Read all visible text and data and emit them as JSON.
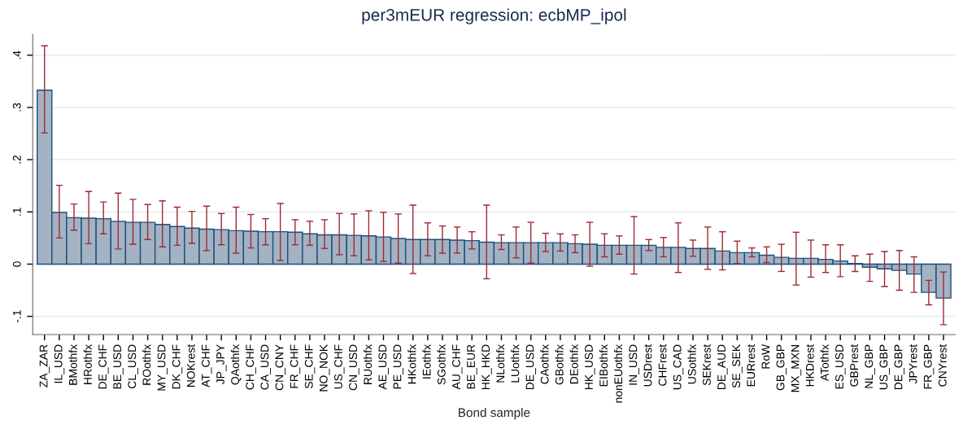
{
  "chart_data": {
    "type": "bar",
    "title": "per3mEUR regression: ecbMP_ipol",
    "xlabel": "Bond sample",
    "categories": [
      "ZA_ZAR",
      "IL_USD",
      "BMothfx",
      "HRothfx",
      "DE_CHF",
      "BE_USD",
      "CL_USD",
      "ROothfx",
      "MY_USD",
      "DK_CHF",
      "NOKrest",
      "AT_CHF",
      "JP_JPY",
      "QAothfx",
      "CH_CHF",
      "CA_USD",
      "CN_CNY",
      "FR_CHF",
      "SE_CHF",
      "NO_NOK",
      "US_CHF",
      "CN_USD",
      "RUothfx",
      "AE_USD",
      "PE_USD",
      "HKothfx",
      "IEothfx",
      "SGothfx",
      "AU_CHF",
      "BE_EUR",
      "HK_HKD",
      "NLothfx",
      "LUothfx",
      "DE_USD",
      "CAothfx",
      "GBothfx",
      "DEothfx",
      "HK_USD",
      "EIBothfx",
      "nonEUothfx",
      "IN_USD",
      "USDrest",
      "CHFrest",
      "US_CAD",
      "USothfx",
      "SEKrest",
      "DE_AUD",
      "SE_SEK",
      "EURrest",
      "RoW",
      "GB_GBP",
      "MX_MXN",
      "HKDrest",
      "ATothfx",
      "ES_USD",
      "GBPrest",
      "NL_GBP",
      "US_GBP",
      "DE_GBP",
      "JPYrest",
      "FR_GBP",
      "CNYrest"
    ],
    "values": [
      0.333,
      0.099,
      0.089,
      0.088,
      0.087,
      0.082,
      0.08,
      0.08,
      0.076,
      0.072,
      0.069,
      0.067,
      0.066,
      0.064,
      0.063,
      0.062,
      0.062,
      0.061,
      0.058,
      0.056,
      0.056,
      0.055,
      0.054,
      0.052,
      0.049,
      0.047,
      0.047,
      0.047,
      0.046,
      0.045,
      0.042,
      0.041,
      0.041,
      0.041,
      0.041,
      0.041,
      0.039,
      0.038,
      0.036,
      0.036,
      0.036,
      0.036,
      0.032,
      0.032,
      0.03,
      0.03,
      0.025,
      0.022,
      0.022,
      0.017,
      0.013,
      0.011,
      0.011,
      0.009,
      0.006,
      0.001,
      -0.006,
      -0.009,
      -0.012,
      -0.019,
      -0.054,
      -0.065
    ],
    "errors": [
      [
        0.251,
        0.418
      ],
      [
        0.05,
        0.151
      ],
      [
        0.065,
        0.115
      ],
      [
        0.039,
        0.139
      ],
      [
        0.058,
        0.119
      ],
      [
        0.029,
        0.136
      ],
      [
        0.038,
        0.124
      ],
      [
        0.047,
        0.114
      ],
      [
        0.033,
        0.121
      ],
      [
        0.036,
        0.109
      ],
      [
        0.04,
        0.101
      ],
      [
        0.026,
        0.111
      ],
      [
        0.037,
        0.097
      ],
      [
        0.021,
        0.109
      ],
      [
        0.031,
        0.095
      ],
      [
        0.037,
        0.087
      ],
      [
        0.007,
        0.116
      ],
      [
        0.037,
        0.085
      ],
      [
        0.036,
        0.082
      ],
      [
        0.03,
        0.085
      ],
      [
        0.018,
        0.097
      ],
      [
        0.016,
        0.096
      ],
      [
        0.008,
        0.102
      ],
      [
        0.005,
        0.099
      ],
      [
        0.002,
        0.096
      ],
      [
        -0.018,
        0.113
      ],
      [
        0.016,
        0.079
      ],
      [
        0.021,
        0.073
      ],
      [
        0.021,
        0.071
      ],
      [
        0.029,
        0.062
      ],
      [
        -0.028,
        0.113
      ],
      [
        0.028,
        0.056
      ],
      [
        0.012,
        0.071
      ],
      [
        0.002,
        0.08
      ],
      [
        0.024,
        0.059
      ],
      [
        0.025,
        0.058
      ],
      [
        0.022,
        0.056
      ],
      [
        -0.004,
        0.08
      ],
      [
        0.014,
        0.058
      ],
      [
        0.019,
        0.054
      ],
      [
        -0.019,
        0.091
      ],
      [
        0.026,
        0.047
      ],
      [
        0.014,
        0.051
      ],
      [
        -0.016,
        0.079
      ],
      [
        0.015,
        0.046
      ],
      [
        -0.01,
        0.071
      ],
      [
        -0.011,
        0.062
      ],
      [
        0.001,
        0.044
      ],
      [
        0.014,
        0.031
      ],
      [
        0.003,
        0.033
      ],
      [
        -0.014,
        0.038
      ],
      [
        -0.04,
        0.061
      ],
      [
        -0.025,
        0.046
      ],
      [
        -0.016,
        0.037
      ],
      [
        -0.024,
        0.037
      ],
      [
        -0.014,
        0.016
      ],
      [
        -0.033,
        0.019
      ],
      [
        -0.043,
        0.024
      ],
      [
        -0.05,
        0.026
      ],
      [
        -0.054,
        0.014
      ],
      [
        -0.078,
        -0.031
      ],
      [
        -0.116,
        -0.015
      ]
    ],
    "color": "#a3b3c4",
    "ylim": [
      -0.135,
      0.44
    ],
    "yticks": [
      {
        "value": -0.1,
        "label": "-.1"
      },
      {
        "value": 0,
        "label": "0"
      },
      {
        "value": 0.1,
        "label": ".1"
      },
      {
        "value": 0.2,
        "label": ".2"
      },
      {
        "value": 0.3,
        "label": ".3"
      },
      {
        "value": 0.4,
        "label": ".4"
      }
    ],
    "grid": "y"
  }
}
